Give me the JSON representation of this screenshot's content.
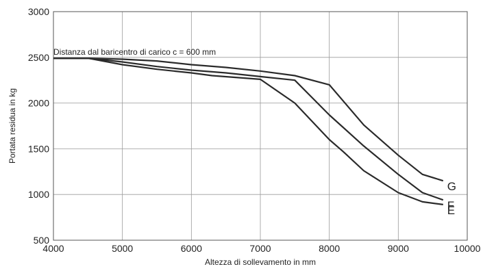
{
  "chart_data": {
    "type": "line",
    "title": "",
    "xlabel": "Altezza di sollevamento in mm",
    "ylabel": "Portata residua in kg",
    "annotation": "Distanza dal baricentro di carico c = 600 mm",
    "xlim": [
      4000,
      10000
    ],
    "ylim": [
      500,
      3000
    ],
    "xticks": [
      4000,
      5000,
      6000,
      7000,
      8000,
      9000,
      10000
    ],
    "yticks": [
      500,
      1000,
      1500,
      2000,
      2500,
      3000
    ],
    "xtick_labels": [
      "4000",
      "5000",
      "6000",
      "7000",
      "8000",
      "9000",
      "10000"
    ],
    "ytick_labels": [
      "500",
      "1000",
      "1500",
      "2000",
      "2500",
      "3000"
    ],
    "grid": true,
    "series": [
      {
        "name": "G",
        "x": [
          4000,
          4500,
          5000,
          5500,
          6000,
          6500,
          7000,
          7500,
          8000,
          8500,
          9000,
          9350,
          9650
        ],
        "y": [
          2490,
          2490,
          2480,
          2460,
          2420,
          2390,
          2350,
          2300,
          2200,
          1760,
          1430,
          1220,
          1150
        ]
      },
      {
        "name": "F",
        "x": [
          4000,
          4500,
          5000,
          5500,
          6000,
          6500,
          7000,
          7500,
          8000,
          8500,
          9000,
          9350,
          9650
        ],
        "y": [
          2490,
          2490,
          2450,
          2400,
          2360,
          2330,
          2290,
          2250,
          1870,
          1530,
          1220,
          1020,
          940
        ]
      },
      {
        "name": "E",
        "x": [
          4000,
          4500,
          5000,
          5500,
          6000,
          6300,
          7000,
          7500,
          8000,
          8200,
          8500,
          9000,
          9350,
          9650
        ],
        "y": [
          2490,
          2490,
          2420,
          2370,
          2330,
          2300,
          2260,
          2000,
          1600,
          1470,
          1260,
          1020,
          920,
          890
        ]
      }
    ]
  }
}
